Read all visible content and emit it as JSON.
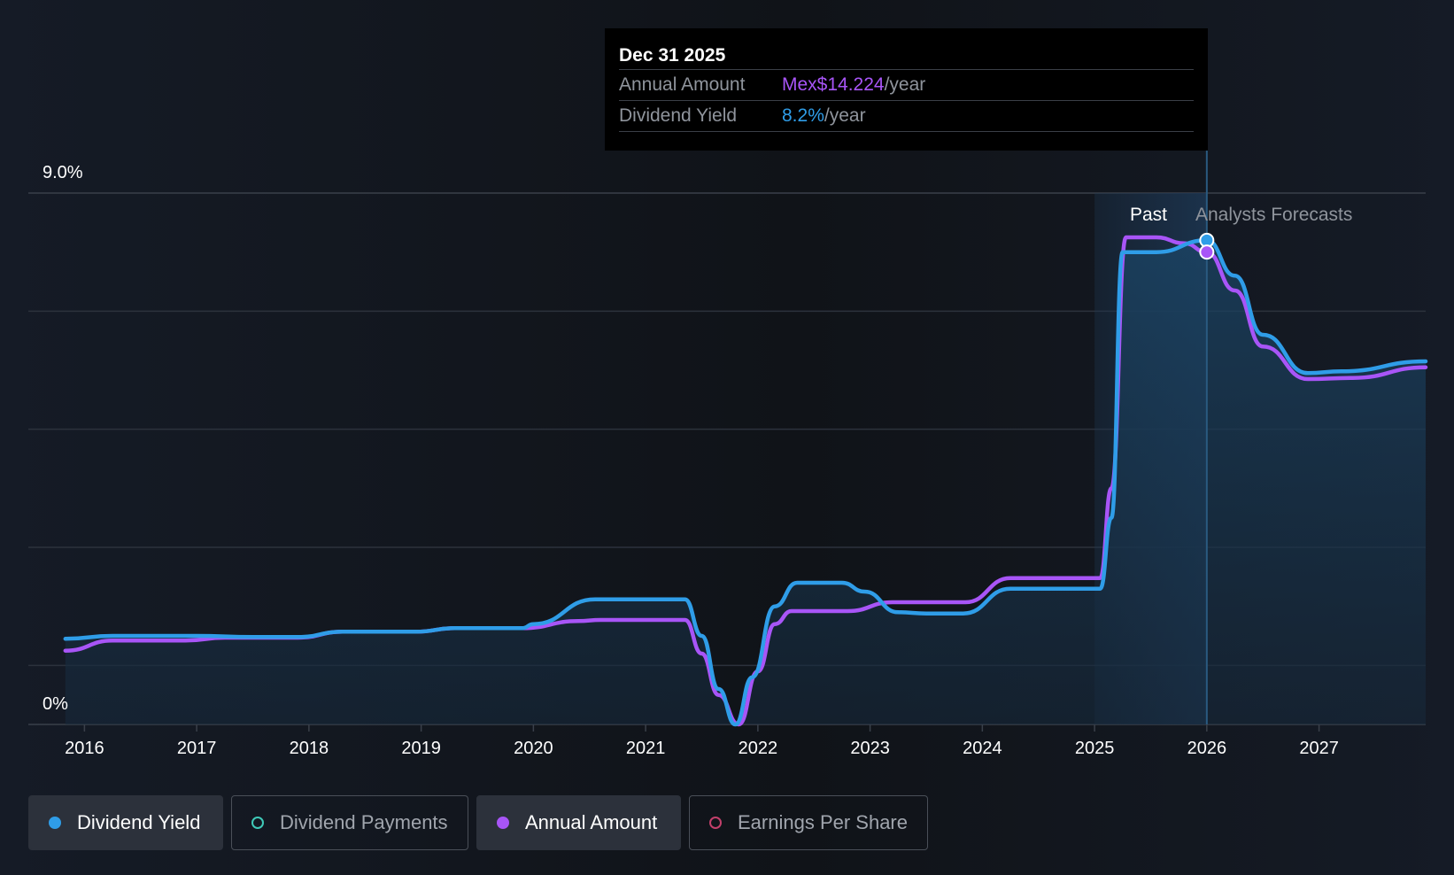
{
  "tooltip": {
    "date": "Dec 31 2025",
    "rows": [
      {
        "label": "Annual Amount",
        "value": "Mex$14.224",
        "unit": "/year"
      },
      {
        "label": "Dividend Yield",
        "value": "8.2%",
        "unit": "/year"
      }
    ]
  },
  "legend": [
    {
      "label": "Dividend Yield",
      "active": true,
      "color": "#2f9de8",
      "filled": true
    },
    {
      "label": "Dividend Payments",
      "active": false,
      "color": "#3fc9b8",
      "filled": false
    },
    {
      "label": "Annual Amount",
      "active": true,
      "color": "#a855f7",
      "filled": true
    },
    {
      "label": "Earnings Per Share",
      "active": false,
      "color": "#c2406b",
      "filled": false
    }
  ],
  "colors": {
    "background": "#151b26",
    "yield": "#2f9de8",
    "amount": "#a855f7",
    "grid": "#2c323c"
  },
  "chart_data": {
    "type": "line",
    "ylabel_top": "9.0%",
    "ylabel_bottom": "0%",
    "ylim": [
      0,
      9.0
    ],
    "xlim": [
      2015.5,
      2027.95
    ],
    "x_ticks": [
      2016,
      2017,
      2018,
      2019,
      2020,
      2021,
      2022,
      2023,
      2024,
      2025,
      2026,
      2027
    ],
    "past_label": "Past",
    "forecast_label": "Analysts Forecasts",
    "past_region": [
      2025.0,
      2026.0
    ],
    "highlight_x": 2026.0,
    "series": [
      {
        "name": "Dividend Yield",
        "color": "#2f9de8",
        "points": [
          [
            2015.83,
            1.45
          ],
          [
            2016.25,
            1.5
          ],
          [
            2017.0,
            1.5
          ],
          [
            2017.5,
            1.48
          ],
          [
            2017.9,
            1.48
          ],
          [
            2018.3,
            1.57
          ],
          [
            2018.95,
            1.57
          ],
          [
            2019.3,
            1.63
          ],
          [
            2019.9,
            1.63
          ],
          [
            2020.0,
            1.7
          ],
          [
            2020.55,
            2.12
          ],
          [
            2020.8,
            2.12
          ],
          [
            2021.35,
            2.12
          ],
          [
            2021.5,
            1.5
          ],
          [
            2021.65,
            0.6
          ],
          [
            2021.8,
            0.0
          ],
          [
            2021.95,
            0.8
          ],
          [
            2022.15,
            2.0
          ],
          [
            2022.35,
            2.4
          ],
          [
            2022.75,
            2.4
          ],
          [
            2022.95,
            2.25
          ],
          [
            2023.25,
            1.9
          ],
          [
            2023.5,
            1.88
          ],
          [
            2023.83,
            1.88
          ],
          [
            2024.25,
            2.3
          ],
          [
            2025.05,
            2.3
          ],
          [
            2025.15,
            3.5
          ],
          [
            2025.25,
            8.0
          ],
          [
            2025.55,
            8.0
          ],
          [
            2026.0,
            8.2
          ],
          [
            2026.25,
            7.6
          ],
          [
            2026.5,
            6.6
          ],
          [
            2026.9,
            5.95
          ],
          [
            2027.2,
            5.98
          ],
          [
            2027.95,
            6.15
          ]
        ]
      },
      {
        "name": "Annual Amount",
        "color": "#a855f7",
        "points": [
          [
            2015.83,
            1.25
          ],
          [
            2016.25,
            1.42
          ],
          [
            2016.9,
            1.42
          ],
          [
            2017.25,
            1.47
          ],
          [
            2017.9,
            1.47
          ],
          [
            2018.3,
            1.57
          ],
          [
            2018.95,
            1.57
          ],
          [
            2019.3,
            1.63
          ],
          [
            2019.9,
            1.63
          ],
          [
            2020.4,
            1.75
          ],
          [
            2020.6,
            1.77
          ],
          [
            2021.35,
            1.77
          ],
          [
            2021.5,
            1.2
          ],
          [
            2021.65,
            0.5
          ],
          [
            2021.83,
            0.0
          ],
          [
            2022.0,
            0.9
          ],
          [
            2022.15,
            1.7
          ],
          [
            2022.3,
            1.92
          ],
          [
            2022.8,
            1.92
          ],
          [
            2023.2,
            2.07
          ],
          [
            2023.85,
            2.07
          ],
          [
            2024.25,
            2.48
          ],
          [
            2025.05,
            2.48
          ],
          [
            2025.15,
            4.0
          ],
          [
            2025.28,
            8.25
          ],
          [
            2025.55,
            8.25
          ],
          [
            2025.8,
            8.15
          ],
          [
            2026.0,
            8.0
          ],
          [
            2026.25,
            7.35
          ],
          [
            2026.5,
            6.4
          ],
          [
            2026.9,
            5.85
          ],
          [
            2027.3,
            5.87
          ],
          [
            2027.95,
            6.05
          ]
        ]
      }
    ]
  }
}
